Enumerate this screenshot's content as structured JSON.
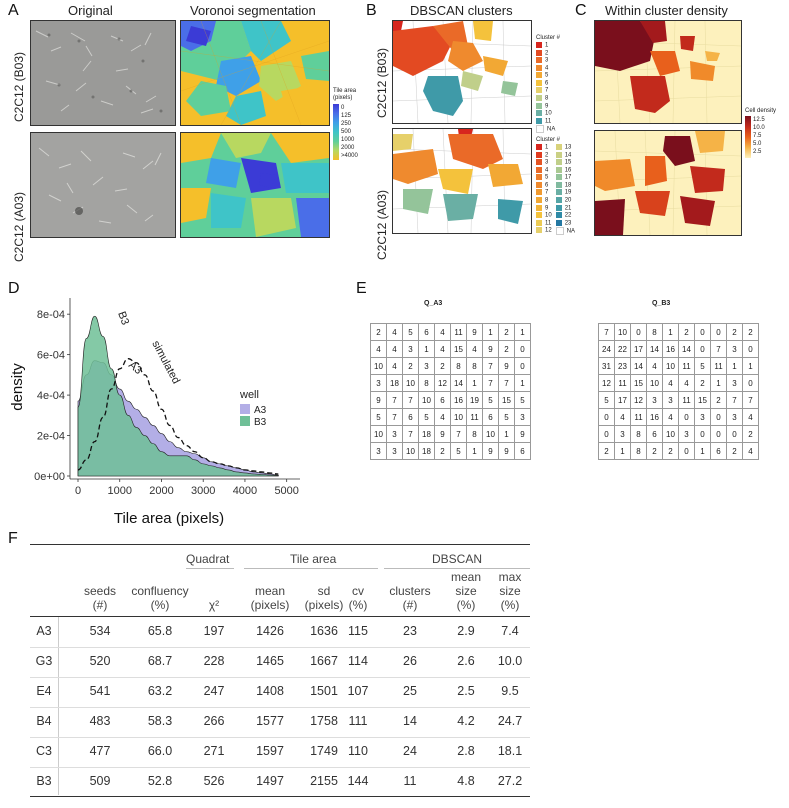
{
  "panels": {
    "A": {
      "label": "A",
      "col_titles": [
        "Original",
        "Voronoi segmentation"
      ],
      "row_labels": [
        "C2C12 (B03)",
        "C2C12 (A03)"
      ],
      "legend": {
        "title_lines": [
          "Tile area",
          "(pixels)"
        ],
        "ticks": [
          "0",
          "125",
          "250",
          "500",
          "1000",
          "2000",
          ">4000"
        ],
        "colors": [
          "#3b3bd6",
          "#4a6ee8",
          "#3fa0e8",
          "#3fc4c8",
          "#5fcf9a",
          "#b8d860",
          "#f5bf2a"
        ]
      }
    },
    "B": {
      "label": "B",
      "title": "DBSCAN clusters",
      "row_labels": [
        "C2C12 (B03)",
        "C2C12 (A03)"
      ],
      "legend_top": {
        "title": "Cluster #",
        "items": [
          "1",
          "2",
          "3",
          "4",
          "5",
          "6",
          "7",
          "8",
          "9",
          "10",
          "11",
          "NA"
        ],
        "colors": [
          "#d7261e",
          "#e34a22",
          "#ea6a28",
          "#ef8a2e",
          "#f2a834",
          "#f4c23c",
          "#e6d06a",
          "#c0cf8a",
          "#94c49a",
          "#6aafa4",
          "#3f9aa8",
          "#ffffff"
        ]
      },
      "legend_bottom": {
        "title": "Cluster #",
        "col1": [
          "1",
          "2",
          "3",
          "4",
          "5",
          "6",
          "7",
          "8",
          "9",
          "10",
          "11",
          "12"
        ],
        "col2": [
          "13",
          "14",
          "15",
          "16",
          "17",
          "18",
          "19",
          "20",
          "21",
          "22",
          "23",
          "NA"
        ]
      }
    },
    "C": {
      "label": "C",
      "title": "Within cluster density",
      "legend": {
        "title": "Cell density",
        "ticks": [
          "12.5",
          "10.0",
          "7.5",
          "5.0",
          "2.5"
        ]
      }
    },
    "D": {
      "label": "D"
    },
    "E": {
      "label": "E",
      "tables": [
        {
          "title": "Q_A3",
          "rows": [
            [
              "2",
              "4",
              "5",
              "6",
              "4",
              "11",
              "9",
              "1",
              "2",
              "1"
            ],
            [
              "4",
              "4",
              "3",
              "1",
              "4",
              "15",
              "4",
              "9",
              "2",
              "0"
            ],
            [
              "10",
              "4",
              "2",
              "3",
              "2",
              "8",
              "8",
              "7",
              "9",
              "0"
            ],
            [
              "3",
              "18",
              "10",
              "8",
              "12",
              "14",
              "1",
              "7",
              "7",
              "1"
            ],
            [
              "9",
              "7",
              "7",
              "10",
              "6",
              "16",
              "19",
              "5",
              "15",
              "5"
            ],
            [
              "5",
              "7",
              "6",
              "5",
              "4",
              "10",
              "11",
              "6",
              "5",
              "3"
            ],
            [
              "10",
              "3",
              "7",
              "18",
              "9",
              "7",
              "8",
              "10",
              "1",
              "9"
            ],
            [
              "3",
              "3",
              "10",
              "18",
              "2",
              "5",
              "1",
              "9",
              "9",
              "6"
            ]
          ]
        },
        {
          "title": "Q_B3",
          "rows": [
            [
              "7",
              "10",
              "0",
              "8",
              "1",
              "2",
              "0",
              "0",
              "2",
              "2"
            ],
            [
              "24",
              "22",
              "17",
              "14",
              "16",
              "14",
              "0",
              "7",
              "3",
              "0"
            ],
            [
              "31",
              "23",
              "14",
              "4",
              "10",
              "11",
              "5",
              "11",
              "1",
              "1"
            ],
            [
              "12",
              "11",
              "15",
              "10",
              "4",
              "4",
              "2",
              "1",
              "3",
              "0"
            ],
            [
              "5",
              "17",
              "12",
              "3",
              "3",
              "11",
              "15",
              "2",
              "7",
              "7"
            ],
            [
              "0",
              "4",
              "11",
              "16",
              "4",
              "0",
              "3",
              "0",
              "3",
              "4"
            ],
            [
              "0",
              "3",
              "8",
              "6",
              "10",
              "3",
              "0",
              "0",
              "0",
              "2"
            ],
            [
              "2",
              "1",
              "8",
              "2",
              "2",
              "0",
              "1",
              "6",
              "2",
              "4"
            ]
          ]
        }
      ]
    },
    "F": {
      "label": "F",
      "group_headers": [
        "Quadrat",
        "Tile area",
        "DBSCAN"
      ],
      "col_headers": [
        [
          "seeds",
          "(#)"
        ],
        [
          "confluency",
          "(%)"
        ],
        [
          "χ²",
          ""
        ],
        [
          "mean",
          "(pixels)"
        ],
        [
          "sd",
          "(pixels)"
        ],
        [
          "cv",
          "(%)"
        ],
        [
          "clusters",
          "(#)"
        ],
        [
          "mean",
          "size",
          "(%)"
        ],
        [
          "max",
          "size",
          "(%)"
        ]
      ],
      "rows": [
        [
          "A3",
          "534",
          "65.8",
          "197",
          "1426",
          "1636",
          "115",
          "23",
          "2.9",
          "7.4"
        ],
        [
          "G3",
          "520",
          "68.7",
          "228",
          "1465",
          "1667",
          "114",
          "26",
          "2.6",
          "10.0"
        ],
        [
          "E4",
          "541",
          "63.2",
          "247",
          "1408",
          "1501",
          "107",
          "25",
          "2.5",
          "9.5"
        ],
        [
          "B4",
          "483",
          "58.3",
          "266",
          "1577",
          "1758",
          "111",
          "14",
          "4.2",
          "24.7"
        ],
        [
          "C3",
          "477",
          "66.0",
          "271",
          "1597",
          "1749",
          "110",
          "24",
          "2.8",
          "18.1"
        ],
        [
          "B3",
          "509",
          "52.8",
          "526",
          "1497",
          "2155",
          "144",
          "11",
          "4.8",
          "27.2"
        ]
      ]
    }
  },
  "chart_data": {
    "type": "area",
    "xlabel": "Tile area (pixels)",
    "ylabel": "density",
    "xlim": [
      0,
      5000
    ],
    "ylim": [
      0,
      0.00088
    ],
    "xticks": [
      "0",
      "1000",
      "2000",
      "3000",
      "4000",
      "5000"
    ],
    "yticks": [
      "0e+00",
      "2e-04",
      "4e-04",
      "6e-04",
      "8e-04"
    ],
    "legend": {
      "title": "well",
      "items": [
        "A3",
        "B3"
      ],
      "colors": [
        "#b3aee6",
        "#6fbf97"
      ]
    },
    "annotations": [
      "B3",
      "A3",
      "simulated"
    ],
    "series": [
      {
        "name": "A3",
        "x": [
          0,
          200,
          400,
          600,
          800,
          1000,
          1200,
          1400,
          1600,
          1800,
          2000,
          2200,
          2400,
          2600,
          2800,
          3000,
          3200,
          3400,
          3600,
          3800,
          4000,
          4200,
          4400,
          4600,
          4800
        ],
        "y": [
          0.00037,
          0.0005,
          0.00057,
          0.00056,
          0.0005,
          0.00043,
          0.00037,
          0.00033,
          0.00029,
          0.00025,
          0.00021,
          0.00017,
          0.00014,
          0.00012,
          0.00011,
          9e-05,
          7e-05,
          6e-05,
          5e-05,
          4e-05,
          3e-05,
          2e-05,
          1.5e-05,
          1e-05,
          5e-06
        ]
      },
      {
        "name": "B3",
        "x": [
          0,
          200,
          400,
          600,
          800,
          1000,
          1200,
          1400,
          1600,
          1800,
          2000,
          2200,
          2400,
          2600,
          2800,
          3000,
          3200,
          3400,
          3600,
          3800,
          4000,
          4200,
          4400,
          4600,
          4800
        ],
        "y": [
          0.00034,
          0.00068,
          0.00079,
          0.00069,
          0.00053,
          0.0004,
          0.0003,
          0.00024,
          0.0002,
          0.00016,
          0.00012,
          0.0001,
          0.0001,
          0.0001,
          8e-05,
          6e-05,
          5e-05,
          4e-05,
          3e-05,
          2e-05,
          1.5e-05,
          1e-05,
          8e-06,
          5e-06,
          3e-06
        ]
      },
      {
        "name": "simulated",
        "x": [
          0,
          200,
          400,
          600,
          800,
          1000,
          1200,
          1400,
          1600,
          1800,
          2000,
          2200,
          2400,
          2600,
          2800,
          3000,
          3200,
          3400,
          3600,
          3800,
          4000,
          4200,
          4400,
          4600,
          4800
        ],
        "y": [
          3e-05,
          8e-05,
          0.00017,
          0.00029,
          0.00043,
          0.00053,
          0.00058,
          0.00056,
          0.0005,
          0.00042,
          0.00033,
          0.00025,
          0.00019,
          0.00015,
          0.00012,
          9e-05,
          7e-05,
          6e-05,
          5e-05,
          4e-05,
          3e-05,
          2.5e-05,
          2e-05,
          1.5e-05,
          1e-05
        ]
      }
    ]
  }
}
